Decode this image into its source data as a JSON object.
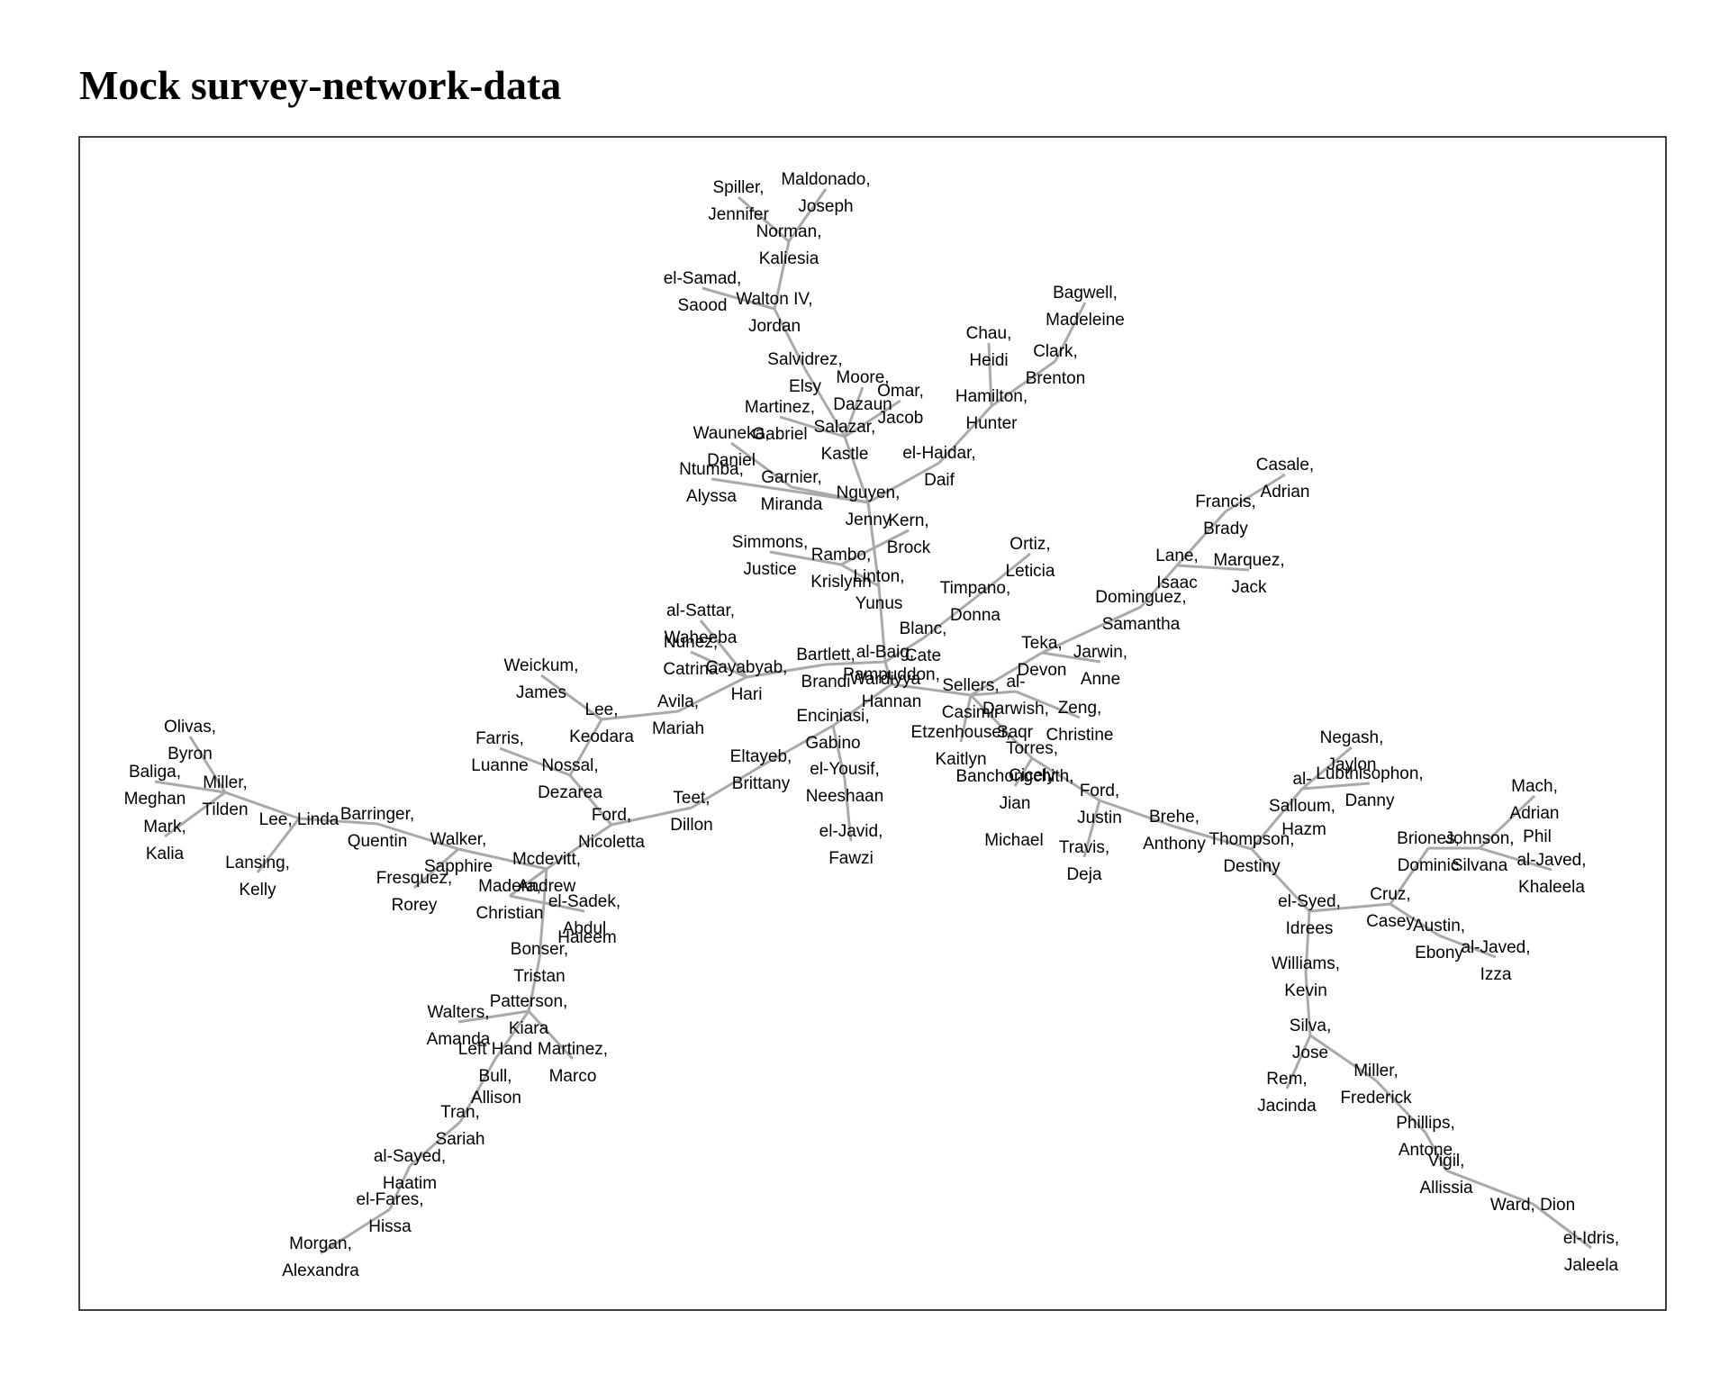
{
  "title": "Mock survey-network-data",
  "edge_color": "#a9a9a9",
  "chart_data": {
    "type": "network",
    "title": "Mock survey-network-data",
    "nodes": [
      {
        "id": "spiller",
        "l1": "Spiller,",
        "l2": "Jennifer"
      },
      {
        "id": "maldonado",
        "l1": "Maldonado,",
        "l2": "Joseph"
      },
      {
        "id": "norman",
        "l1": "Norman,",
        "l2": "Kaliesia"
      },
      {
        "id": "elsamad",
        "l1": "el-Samad,",
        "l2": "Saood"
      },
      {
        "id": "waltoniv",
        "l1": "Walton IV,",
        "l2": "Jordan"
      },
      {
        "id": "salvidrez",
        "l1": "Salvidrez,",
        "l2": "Elsy"
      },
      {
        "id": "moore",
        "l1": "Moore,",
        "l2": "Dazaun"
      },
      {
        "id": "omar",
        "l1": "Omar,",
        "l2": "Jacob"
      },
      {
        "id": "martinezg",
        "l1": "Martinez,",
        "l2": "Gabriel"
      },
      {
        "id": "salazar",
        "l1": "Salazar,",
        "l2": "Kastle"
      },
      {
        "id": "wauneka",
        "l1": "Wauneka,",
        "l2": "Daniel"
      },
      {
        "id": "ntumba",
        "l1": "Ntumba,",
        "l2": "Alyssa"
      },
      {
        "id": "garnier",
        "l1": "Garnier,",
        "l2": "Miranda"
      },
      {
        "id": "nguyen",
        "l1": "Nguyen,",
        "l2": "Jenny"
      },
      {
        "id": "elhaidar",
        "l1": "el-Haidar,",
        "l2": "Daif"
      },
      {
        "id": "bagwell",
        "l1": "Bagwell,",
        "l2": "Madeleine"
      },
      {
        "id": "chau",
        "l1": "Chau,",
        "l2": "Heidi"
      },
      {
        "id": "clark",
        "l1": "Clark,",
        "l2": "Brenton"
      },
      {
        "id": "hamilton",
        "l1": "Hamilton,",
        "l2": "Hunter"
      },
      {
        "id": "kern",
        "l1": "Kern,",
        "l2": "Brock"
      },
      {
        "id": "simmons",
        "l1": "Simmons,",
        "l2": "Justice"
      },
      {
        "id": "rambo",
        "l1": "Rambo,",
        "l2": "Krislynn"
      },
      {
        "id": "linton",
        "l1": "Linton,",
        "l2": "Yunus"
      },
      {
        "id": "ortiz",
        "l1": "Ortiz,",
        "l2": "Leticia"
      },
      {
        "id": "timpano",
        "l1": "Timpano,",
        "l2": "Donna"
      },
      {
        "id": "casale",
        "l1": "Casale,",
        "l2": "Adrian"
      },
      {
        "id": "francis",
        "l1": "Francis,",
        "l2": "Brady"
      },
      {
        "id": "lane",
        "l1": "Lane,",
        "l2": "Isaac"
      },
      {
        "id": "marquez",
        "l1": "Marquez,",
        "l2": "Jack"
      },
      {
        "id": "dominguez",
        "l1": "Dominguez,",
        "l2": "Samantha"
      },
      {
        "id": "alsattar",
        "l1": "al-Sattar,",
        "l2": "Waheeba"
      },
      {
        "id": "nunez",
        "l1": "Nunez,",
        "l2": "Catrina"
      },
      {
        "id": "cayabyab",
        "l1": "Cayabyab,",
        "l2": "Hari"
      },
      {
        "id": "bartlett",
        "l1": "Bartlett,",
        "l2": "Brandi"
      },
      {
        "id": "albaig",
        "l1": "al-Baig,",
        "l2": "Wardiyya"
      },
      {
        "id": "blanc",
        "l1": "Blanc,",
        "l2": "Cate"
      },
      {
        "id": "teka",
        "l1": "Teka,",
        "l2": "Devon"
      },
      {
        "id": "jarwin",
        "l1": "Jarwin,",
        "l2": "Anne"
      },
      {
        "id": "pampuddon",
        "l1": "Pampuddon,",
        "l2": "Hannan"
      },
      {
        "id": "sellers",
        "l1": "Sellers,",
        "l2": "Casimir"
      },
      {
        "id": "aldarwish",
        "l1": "al-",
        "l2": "Darwish,"
      },
      {
        "id": "sagr",
        "l1": "",
        "l2": "Saqr"
      },
      {
        "id": "zeng",
        "l1": "Zeng,",
        "l2": "Christine"
      },
      {
        "id": "weickum",
        "l1": "Weickum,",
        "l2": "James"
      },
      {
        "id": "leek",
        "l1": "Lee,",
        "l2": "Keodara"
      },
      {
        "id": "avila",
        "l1": "Avila,",
        "l2": "Mariah"
      },
      {
        "id": "enciniasi",
        "l1": "Enciniasi,",
        "l2": "Gabino"
      },
      {
        "id": "etzenhouser",
        "l1": "Etzenhouser,",
        "l2": "Kaitlyn"
      },
      {
        "id": "torres",
        "l1": "Torres,",
        "l2": "Cicely"
      },
      {
        "id": "olivas",
        "l1": "Olivas,",
        "l2": "Byron"
      },
      {
        "id": "baliga",
        "l1": "Baliga,",
        "l2": "Meghan"
      },
      {
        "id": "millert",
        "l1": "Miller,",
        "l2": "Tilden"
      },
      {
        "id": "mark",
        "l1": "Mark,",
        "l2": "Kalia"
      },
      {
        "id": "leelinda",
        "l1": "Lee, Linda",
        "l2": ""
      },
      {
        "id": "lansing",
        "l1": "Lansing,",
        "l2": "Kelly"
      },
      {
        "id": "farris",
        "l1": "Farris,",
        "l2": "Luanne"
      },
      {
        "id": "nossal",
        "l1": "Nossal,",
        "l2": "Dezarea"
      },
      {
        "id": "eltayeb",
        "l1": "Eltayeb,",
        "l2": "Brittany"
      },
      {
        "id": "elyousif",
        "l1": "el-Yousif,",
        "l2": "Neeshaan"
      },
      {
        "id": "banchongchith",
        "l1": "Banchongchith,",
        "l2": "Jian"
      },
      {
        "id": "michael",
        "l1": "",
        "l2": "Michael"
      },
      {
        "id": "fordj",
        "l1": "Ford,",
        "l2": "Justin"
      },
      {
        "id": "brehe",
        "l1": "Brehe,",
        "l2": "Anthony"
      },
      {
        "id": "negash",
        "l1": "Negash,",
        "l2": "Jaylon"
      },
      {
        "id": "alsalloum",
        "l1": "al-",
        "l2": "Salloum,"
      },
      {
        "id": "hazm",
        "l1": "",
        "l2": "Hazm"
      },
      {
        "id": "lubthisophon",
        "l1": "Lubthisophon,",
        "l2": "Danny"
      },
      {
        "id": "mach",
        "l1": "Mach,",
        "l2": "Adrian"
      },
      {
        "id": "barringer",
        "l1": "Barringer,",
        "l2": "Quentin"
      },
      {
        "id": "walker",
        "l1": "Walker,",
        "l2": "Sapphire"
      },
      {
        "id": "teet",
        "l1": "Teet,",
        "l2": "Dillon"
      },
      {
        "id": "fordn",
        "l1": "Ford,",
        "l2": "Nicoletta"
      },
      {
        "id": "eljavid",
        "l1": "el-Javid,",
        "l2": "Fawzi"
      },
      {
        "id": "travis",
        "l1": "Travis,",
        "l2": "Deja"
      },
      {
        "id": "thompson",
        "l1": "Thompson,",
        "l2": "Destiny"
      },
      {
        "id": "briones",
        "l1": "Briones,",
        "l2": "Dominic"
      },
      {
        "id": "johnson",
        "l1": "Johnson,",
        "l2": "Silvana"
      },
      {
        "id": "phil",
        "l1": "",
        "l2": "Phil"
      },
      {
        "id": "aljavedk",
        "l1": "al-Javed,",
        "l2": "Khaleela"
      },
      {
        "id": "fresquez",
        "l1": "Fresquez,",
        "l2": "Rorey"
      },
      {
        "id": "mcdevitt",
        "l1": "Mcdevitt,",
        "l2": "Andrew"
      },
      {
        "id": "madera",
        "l1": "Madera,",
        "l2": "Christian"
      },
      {
        "id": "elsadek",
        "l1": "el-Sadek,",
        "l2": "Abdul"
      },
      {
        "id": "haleem",
        "l1": "",
        "l2": "Haleem"
      },
      {
        "id": "elsyed",
        "l1": "el-Syed,",
        "l2": "Idrees"
      },
      {
        "id": "cruz",
        "l1": "Cruz,",
        "l2": "Casey"
      },
      {
        "id": "austin",
        "l1": "Austin,",
        "l2": "Ebony"
      },
      {
        "id": "aljavedi",
        "l1": "al-Javed,",
        "l2": "Izza"
      },
      {
        "id": "bonser",
        "l1": "Bonser,",
        "l2": "Tristan"
      },
      {
        "id": "williams",
        "l1": "Williams,",
        "l2": "Kevin"
      },
      {
        "id": "patterson",
        "l1": "Patterson,",
        "l2": "Kiara"
      },
      {
        "id": "walters",
        "l1": "Walters,",
        "l2": "Amanda"
      },
      {
        "id": "lefthand",
        "l1": "Left Hand",
        "l2": "Bull,"
      },
      {
        "id": "allison",
        "l1": "",
        "l2": "Allison"
      },
      {
        "id": "martinezm",
        "l1": "Martinez,",
        "l2": "Marco"
      },
      {
        "id": "silva",
        "l1": "Silva,",
        "l2": "Jose"
      },
      {
        "id": "rem",
        "l1": "Rem,",
        "l2": "Jacinda"
      },
      {
        "id": "millerf",
        "l1": "Miller,",
        "l2": "Frederick"
      },
      {
        "id": "tran",
        "l1": "Tran,",
        "l2": "Sariah"
      },
      {
        "id": "phillips",
        "l1": "Phillips,",
        "l2": "Antone"
      },
      {
        "id": "alsayed",
        "l1": "al-Sayed,",
        "l2": "Haatim"
      },
      {
        "id": "vigil",
        "l1": "Vigil,",
        "l2": "Allissia"
      },
      {
        "id": "elfares",
        "l1": "el-Fares,",
        "l2": "Hissa"
      },
      {
        "id": "ward",
        "l1": "Ward, Dion",
        "l2": ""
      },
      {
        "id": "elidris",
        "l1": "el-Idris,",
        "l2": "Jaleela"
      },
      {
        "id": "morgan",
        "l1": "Morgan,",
        "l2": "Alexandra"
      }
    ],
    "edges": [
      [
        "spiller",
        "norman"
      ],
      [
        "maldonado",
        "norman"
      ],
      [
        "norman",
        "waltoniv"
      ],
      [
        "elsamad",
        "waltoniv"
      ],
      [
        "waltoniv",
        "salvidrez"
      ],
      [
        "salvidrez",
        "salazar"
      ],
      [
        "moore",
        "salazar"
      ],
      [
        "omar",
        "salazar"
      ],
      [
        "martinezg",
        "salazar"
      ],
      [
        "salazar",
        "nguyen"
      ],
      [
        "wauneka",
        "garnier"
      ],
      [
        "ntumba",
        "nguyen"
      ],
      [
        "garnier",
        "nguyen"
      ],
      [
        "elhaidar",
        "nguyen"
      ],
      [
        "bagwell",
        "clark"
      ],
      [
        "clark",
        "hamilton"
      ],
      [
        "chau",
        "hamilton"
      ],
      [
        "hamilton",
        "elhaidar"
      ],
      [
        "nguyen",
        "linton"
      ],
      [
        "kern",
        "rambo"
      ],
      [
        "simmons",
        "rambo"
      ],
      [
        "rambo",
        "linton"
      ],
      [
        "linton",
        "albaig"
      ],
      [
        "ortiz",
        "timpano"
      ],
      [
        "timpano",
        "blanc"
      ],
      [
        "casale",
        "francis"
      ],
      [
        "francis",
        "lane"
      ],
      [
        "lane",
        "marquez"
      ],
      [
        "lane",
        "dominguez"
      ],
      [
        "dominguez",
        "teka"
      ],
      [
        "teka",
        "sellers"
      ],
      [
        "jarwin",
        "teka"
      ],
      [
        "blanc",
        "albaig"
      ],
      [
        "alsattar",
        "cayabyab"
      ],
      [
        "nunez",
        "cayabyab"
      ],
      [
        "cayabyab",
        "bartlett"
      ],
      [
        "bartlett",
        "albaig"
      ],
      [
        "albaig",
        "pampuddon"
      ],
      [
        "pampuddon",
        "sellers"
      ],
      [
        "pampuddon",
        "enciniasi"
      ],
      [
        "sellers",
        "aldarwish"
      ],
      [
        "aldarwish",
        "zeng"
      ],
      [
        "sellers",
        "etzenhouser"
      ],
      [
        "sellers",
        "torres"
      ],
      [
        "weickum",
        "leek"
      ],
      [
        "leek",
        "avila"
      ],
      [
        "avila",
        "cayabyab"
      ],
      [
        "leek",
        "nossal"
      ],
      [
        "farris",
        "nossal"
      ],
      [
        "nossal",
        "fordn"
      ],
      [
        "enciniasi",
        "eltayeb"
      ],
      [
        "enciniasi",
        "elyousif"
      ],
      [
        "elyousif",
        "eljavid"
      ],
      [
        "eltayeb",
        "teet"
      ],
      [
        "teet",
        "fordn"
      ],
      [
        "torres",
        "banchongchith"
      ],
      [
        "torres",
        "fordj"
      ],
      [
        "fordj",
        "brehe"
      ],
      [
        "fordj",
        "travis"
      ],
      [
        "brehe",
        "thompson"
      ],
      [
        "thompson",
        "alsalloum"
      ],
      [
        "negash",
        "alsalloum"
      ],
      [
        "alsalloum",
        "lubthisophon"
      ],
      [
        "thompson",
        "elsyed"
      ],
      [
        "elsyed",
        "cruz"
      ],
      [
        "cruz",
        "briones"
      ],
      [
        "briones",
        "johnson"
      ],
      [
        "mach",
        "johnson"
      ],
      [
        "johnson",
        "aljavedk"
      ],
      [
        "cruz",
        "austin"
      ],
      [
        "austin",
        "aljavedi"
      ],
      [
        "elsyed",
        "williams"
      ],
      [
        "williams",
        "silva"
      ],
      [
        "silva",
        "rem"
      ],
      [
        "silva",
        "millerf"
      ],
      [
        "millerf",
        "phillips"
      ],
      [
        "phillips",
        "vigil"
      ],
      [
        "vigil",
        "ward"
      ],
      [
        "ward",
        "elidris"
      ],
      [
        "olivas",
        "millert"
      ],
      [
        "baliga",
        "millert"
      ],
      [
        "millert",
        "mark"
      ],
      [
        "millert",
        "leelinda"
      ],
      [
        "leelinda",
        "lansing"
      ],
      [
        "leelinda",
        "barringer"
      ],
      [
        "barringer",
        "walker"
      ],
      [
        "walker",
        "mcdevitt"
      ],
      [
        "fresquez",
        "walker"
      ],
      [
        "mcdevitt",
        "fordn"
      ],
      [
        "mcdevitt",
        "madera"
      ],
      [
        "madera",
        "elsadek"
      ],
      [
        "mcdevitt",
        "bonser"
      ],
      [
        "bonser",
        "patterson"
      ],
      [
        "patterson",
        "walters"
      ],
      [
        "patterson",
        "lefthand"
      ],
      [
        "patterson",
        "martinezm"
      ],
      [
        "lefthand",
        "tran"
      ],
      [
        "tran",
        "alsayed"
      ],
      [
        "alsayed",
        "elfares"
      ],
      [
        "elfares",
        "morgan"
      ]
    ]
  }
}
